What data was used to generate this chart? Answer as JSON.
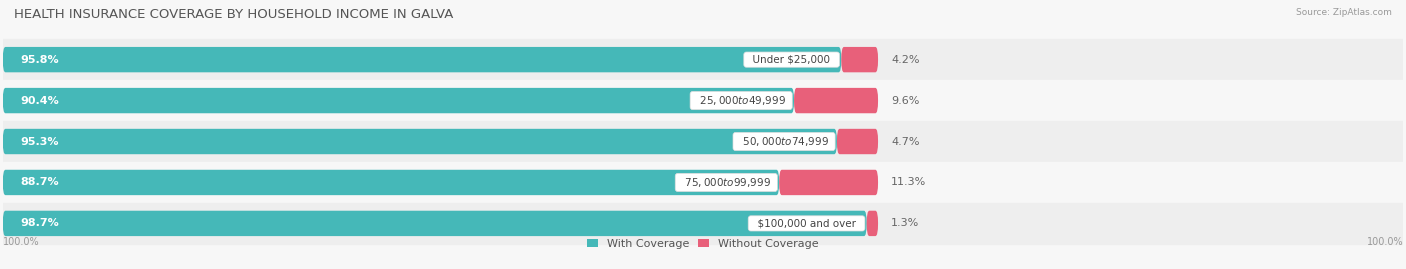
{
  "title": "HEALTH INSURANCE COVERAGE BY HOUSEHOLD INCOME IN GALVA",
  "source": "Source: ZipAtlas.com",
  "categories": [
    "Under $25,000",
    "$25,000 to $49,999",
    "$50,000 to $74,999",
    "$75,000 to $99,999",
    "$100,000 and over"
  ],
  "with_coverage": [
    95.8,
    90.4,
    95.3,
    88.7,
    98.7
  ],
  "without_coverage": [
    4.2,
    9.6,
    4.7,
    11.3,
    1.3
  ],
  "color_with": "#45b8b8",
  "color_with_light": "#80cccc",
  "color_without": "#e8607a",
  "color_without_light": "#f0a0b5",
  "bg_color": "#f7f7f7",
  "row_bg_dark": "#eeeeee",
  "row_bg_light": "#f7f7f7",
  "title_fontsize": 9.5,
  "label_fontsize": 8,
  "cat_fontsize": 7.5,
  "tick_fontsize": 7,
  "legend_fontsize": 8,
  "x_left_label": "100.0%",
  "x_right_label": "100.0%",
  "xlim": [
    0,
    160
  ],
  "bar_scale": 0.55
}
